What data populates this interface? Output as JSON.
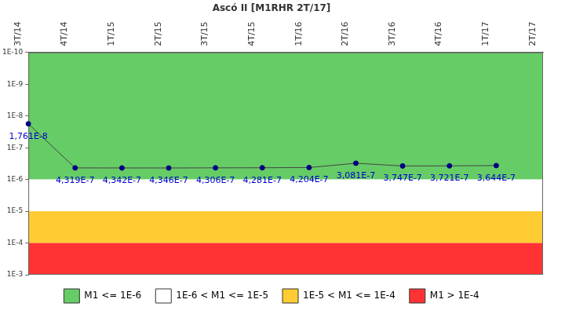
{
  "chart_data": {
    "type": "line",
    "title": "Ascó II [M1RHR 2T/17]",
    "categories": [
      "3T/14",
      "4T/14",
      "1T/15",
      "2T/15",
      "3T/15",
      "4T/15",
      "1T/16",
      "2T/16",
      "3T/16",
      "4T/16",
      "1T/17",
      "2T/17"
    ],
    "values": [
      1.761e-08,
      4.319e-07,
      4.342e-07,
      4.346e-07,
      4.306e-07,
      4.281e-07,
      4.204e-07,
      3.081e-07,
      3.747e-07,
      3.721e-07,
      3.644e-07,
      null
    ],
    "value_labels": [
      "1,761E-8",
      "4,319E-7",
      "4,342E-7",
      "4,346E-7",
      "4,306E-7",
      "4,281E-7",
      "4,204E-7",
      "3,081E-7",
      "3,747E-7",
      "3,721E-7",
      "3,644E-7",
      null
    ],
    "color": "#000080",
    "marker": "circle",
    "data_labels": true,
    "log": "y",
    "grid": false,
    "legend": "bottom",
    "ylim": [
      1e-10,
      0.001
    ],
    "yticks": [
      {
        "value": 1e-10,
        "label": "1E-10"
      },
      {
        "value": 1e-09,
        "label": "1E-9"
      },
      {
        "value": 1e-08,
        "label": "1E-8"
      },
      {
        "value": 1e-07,
        "label": "1E-7"
      },
      {
        "value": 1e-06,
        "label": "1E-6"
      },
      {
        "value": 1e-05,
        "label": "1E-5"
      },
      {
        "value": 0.0001,
        "label": "1E-4"
      },
      {
        "value": 0.001,
        "label": "1E-3"
      }
    ],
    "bands": [
      {
        "name": "M1 <= 1E-6",
        "color": "#66cc66",
        "from": 1e-10,
        "to": 1e-06
      },
      {
        "name": "1E-6 < M1 <= 1E-5",
        "color": "#ffffff",
        "from": 1e-06,
        "to": 1e-05
      },
      {
        "name": "1E-5 < M1 <= 1E-4",
        "color": "#ffcc33",
        "from": 1e-05,
        "to": 0.0001
      },
      {
        "name": "M1 > 1E-4",
        "color": "#ff3333",
        "from": 0.0001,
        "to": 0.001
      }
    ]
  }
}
